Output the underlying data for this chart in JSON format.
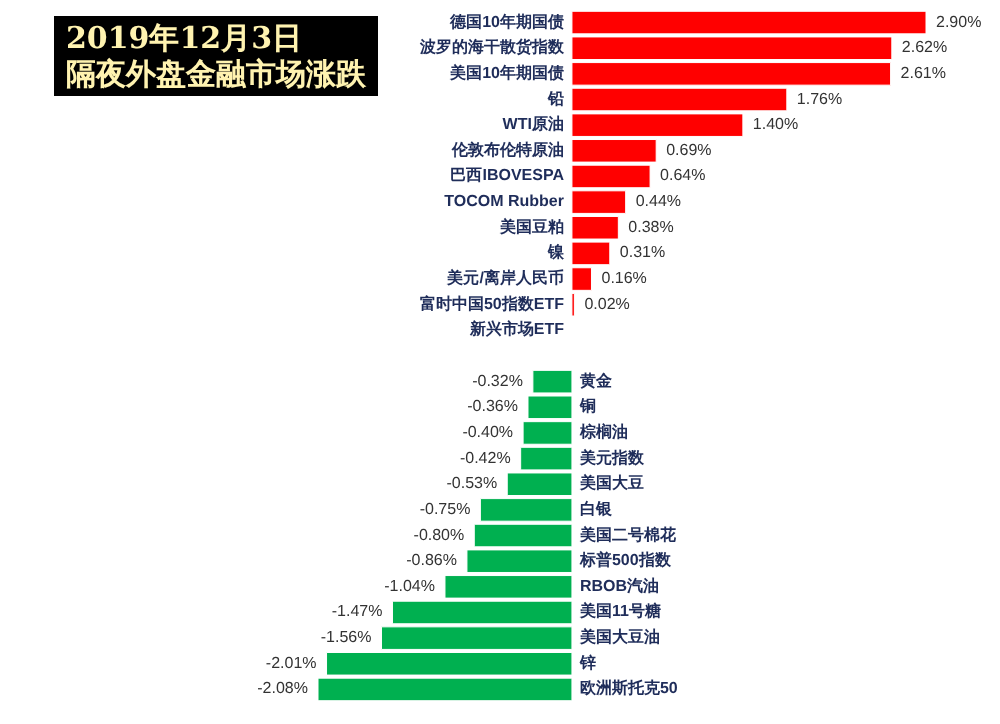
{
  "chart_data": {
    "type": "bar",
    "orientation": "horizontal",
    "title": "隔夜外盘金融市场涨跌",
    "subtitle": "2019年12月3日",
    "categories": [
      "德国10年期国债",
      "波罗的海干散货指数",
      "美国10年期国债",
      "铅",
      "WTI原油",
      "伦敦布伦特原油",
      "巴西IBOVESPA",
      "TOCOM Rubber",
      "美国豆粕",
      "镍",
      "美元/离岸人民币",
      "富时中国50指数ETF",
      "新兴市场ETF",
      null,
      "黄金",
      "铜",
      "棕榈油",
      "美元指数",
      "美国大豆",
      "白银",
      "美国二号棉花",
      "标普500指数",
      "RBOB汽油",
      "美国11号糖",
      "美国大豆油",
      "锌",
      "欧洲斯托克50"
    ],
    "values": [
      2.9,
      2.62,
      2.61,
      1.76,
      1.4,
      0.69,
      0.64,
      0.44,
      0.38,
      0.31,
      0.16,
      0.02,
      null,
      null,
      -0.32,
      -0.36,
      -0.4,
      -0.42,
      -0.53,
      -0.75,
      -0.8,
      -0.86,
      -1.04,
      -1.47,
      -1.56,
      -2.01,
      -2.08
    ],
    "colors": [
      "#ff0000",
      "#ff0000",
      "#ff0000",
      "#ff0000",
      "#ff0000",
      "#ff0000",
      "#ff0000",
      "#ff0000",
      "#ff0000",
      "#ff0000",
      "#ff0000",
      "#ff0000",
      null,
      null,
      "#00b050",
      "#00b050",
      "#00b050",
      "#00b050",
      "#00b050",
      "#00b050",
      "#00b050",
      "#00b050",
      "#00b050",
      "#00b050",
      "#00b050",
      "#00b050",
      "#00b050"
    ],
    "value_labels": [
      "2.90%",
      "2.62%",
      "2.61%",
      "1.76%",
      "1.40%",
      "0.69%",
      "0.64%",
      "0.44%",
      "0.38%",
      "0.31%",
      "0.16%",
      "0.02%",
      null,
      null,
      "-0.32%",
      "-0.36%",
      "-0.40%",
      "-0.42%",
      "-0.53%",
      "-0.75%",
      "-0.80%",
      "-0.86%",
      "-1.04%",
      "-1.47%",
      "-1.56%",
      "-2.01%",
      "-2.08%"
    ]
  }
}
